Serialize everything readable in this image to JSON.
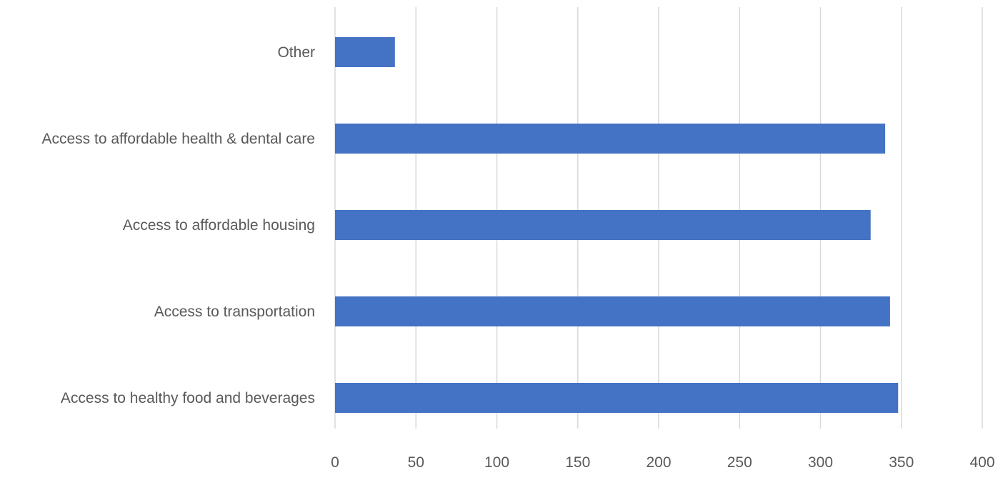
{
  "chart_data": {
    "type": "bar",
    "orientation": "horizontal",
    "title": "",
    "xlabel": "",
    "ylabel": "",
    "categories": [
      "Other",
      "Access to affordable health & dental care",
      "Access to affordable housing",
      "Access to transportation",
      "Access to healthy food and beverages"
    ],
    "values": [
      37,
      340,
      331,
      343,
      348
    ],
    "xlim": [
      0,
      400
    ],
    "xticks": [
      "0",
      "50",
      "100",
      "150",
      "200",
      "250",
      "300",
      "350",
      "400"
    ],
    "grid": true,
    "legend": "none",
    "bar_color": "#4472C4",
    "grid_color": "#D9D9D9",
    "text_color": "#595959"
  }
}
